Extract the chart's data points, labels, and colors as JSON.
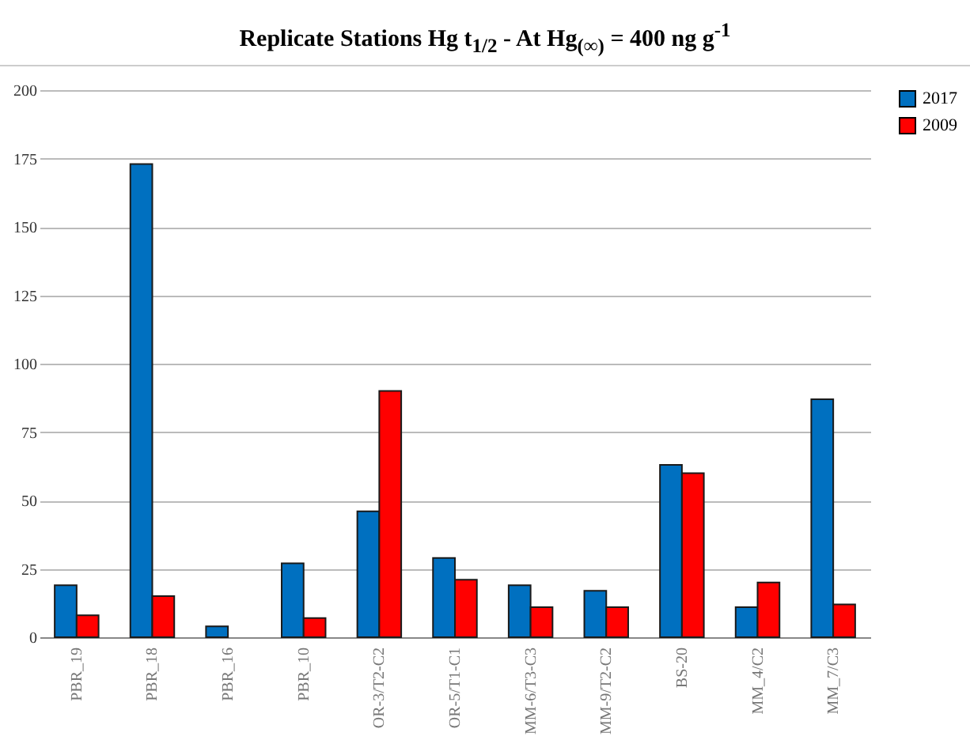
{
  "chart_data": {
    "type": "bar",
    "title": "Replicate Stations Hg t$_{1/2}$ - At Hg$_{(∞)}$ = 400 ng g$^{-1}$",
    "categories": [
      "PBR_19",
      "PBR_18",
      "PBR_16",
      "PBR_10",
      "OR-3/T2-C2",
      "OR-5/T1-C1",
      "MM-6/T3-C3",
      "MM-9/T2-C2",
      "BS-20",
      "MM_4/C2",
      "MM_7/C3"
    ],
    "series": [
      {
        "name": "2017",
        "color": "#0070c0",
        "values": [
          19,
          173,
          4,
          27,
          46,
          29,
          19,
          17,
          63,
          11,
          87
        ]
      },
      {
        "name": "2009",
        "color": "#ff0000",
        "values": [
          8,
          15,
          null,
          7,
          90,
          21,
          11,
          11,
          60,
          20,
          12
        ]
      }
    ],
    "ylim": [
      0,
      200
    ],
    "yticks": [
      0,
      25,
      50,
      75,
      100,
      125,
      150,
      175,
      200
    ],
    "grid": "y",
    "legend": "right"
  }
}
